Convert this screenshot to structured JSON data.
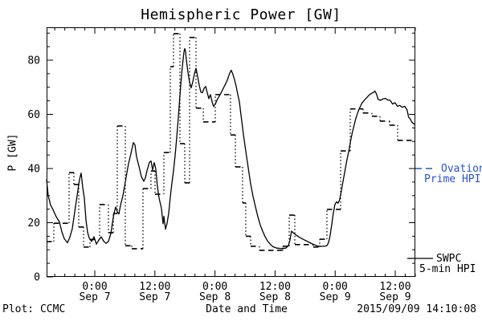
{
  "chart_data": {
    "type": "line",
    "title": "Hemispheric Power [GW]",
    "xlabel": "Date and Time",
    "ylabel": "P [GW]",
    "ylim": [
      0,
      92.15
    ],
    "yticks": [
      {
        "v": 0,
        "label": "0"
      },
      {
        "v": 20,
        "label": "20"
      },
      {
        "v": 40,
        "label": "40"
      },
      {
        "v": 60,
        "label": "60"
      },
      {
        "v": 80,
        "label": "80"
      }
    ],
    "y_minor_step": 5,
    "x_total_hours": 73.64,
    "x_minor_step_hours": 2,
    "xticks": [
      {
        "hour": 9.63,
        "time": "0:00",
        "date": "Sep 7"
      },
      {
        "hour": 21.63,
        "time": "12:00",
        "date": "Sep 7"
      },
      {
        "hour": 33.63,
        "time": "0:00",
        "date": "Sep 8"
      },
      {
        "hour": 45.63,
        "time": "12:00",
        "date": "Sep 8"
      },
      {
        "hour": 57.63,
        "time": "0:00",
        "date": "Sep 9"
      },
      {
        "hour": 69.63,
        "time": "12:00",
        "date": "Sep 9"
      }
    ],
    "legend_position": "right-outside",
    "grid": false,
    "series": [
      {
        "name": "Ovation Prime HPI",
        "color": "#2653cf",
        "style": "dashed-step",
        "units": "GW",
        "steps": [
          [
            0,
            13
          ],
          [
            1.44,
            19.8
          ],
          [
            4.49,
            38.5
          ],
          [
            5.45,
            34.1
          ],
          [
            6.42,
            18.4
          ],
          [
            7.38,
            11.0
          ],
          [
            8.66,
            13.8
          ],
          [
            10.59,
            26.7
          ],
          [
            12.35,
            16.3
          ],
          [
            13.32,
            23.4
          ],
          [
            14.12,
            55.7
          ],
          [
            15.72,
            11.5
          ],
          [
            17.01,
            10.4
          ],
          [
            19.25,
            32.6
          ],
          [
            20.85,
            39.1
          ],
          [
            21.66,
            30.5
          ],
          [
            23.42,
            45.9
          ],
          [
            24.7,
            77.6
          ],
          [
            25.35,
            89.8
          ],
          [
            26.63,
            49.2
          ],
          [
            27.59,
            34.7
          ],
          [
            28.56,
            88.4
          ],
          [
            29.84,
            62.3
          ],
          [
            31.28,
            57.2
          ],
          [
            33.69,
            67.3
          ],
          [
            36.73,
            52.4
          ],
          [
            37.7,
            40.6
          ],
          [
            39.14,
            27.3
          ],
          [
            39.78,
            15.0
          ],
          [
            40.75,
            11.3
          ],
          [
            42.51,
            9.8
          ],
          [
            47.17,
            11.3
          ],
          [
            48.45,
            22.8
          ],
          [
            49.57,
            11.9
          ],
          [
            53.26,
            11.0
          ],
          [
            54.55,
            13.9
          ],
          [
            55.99,
            24.9
          ],
          [
            58.72,
            46.5
          ],
          [
            60.64,
            62.0
          ],
          [
            63.21,
            60.5
          ],
          [
            64.97,
            59.3
          ],
          [
            66.58,
            57.5
          ],
          [
            68.5,
            56.0
          ],
          [
            70.11,
            50.4
          ]
        ]
      },
      {
        "name": "SWPC 5-min HPI",
        "color": "#000000",
        "style": "solid-line",
        "units": "GW",
        "points": [
          [
            0,
            36
          ],
          [
            0.32,
            30
          ],
          [
            0.8,
            26.5
          ],
          [
            1.28,
            24.8
          ],
          [
            1.93,
            22.2
          ],
          [
            2.57,
            20.3
          ],
          [
            3.05,
            16.6
          ],
          [
            3.53,
            14.1
          ],
          [
            4.17,
            12.6
          ],
          [
            4.65,
            14.7
          ],
          [
            5.13,
            17.8
          ],
          [
            5.61,
            24
          ],
          [
            6.1,
            30
          ],
          [
            6.58,
            36
          ],
          [
            6.9,
            38.3
          ],
          [
            7.22,
            33
          ],
          [
            7.54,
            29
          ],
          [
            7.86,
            21
          ],
          [
            8.18,
            16.5
          ],
          [
            8.5,
            14.4
          ],
          [
            8.98,
            13.1
          ],
          [
            9.47,
            14.8
          ],
          [
            9.95,
            12.1
          ],
          [
            10.43,
            13.6
          ],
          [
            10.91,
            14.8
          ],
          [
            11.39,
            13.2
          ],
          [
            11.87,
            12.4
          ],
          [
            12.35,
            13.1
          ],
          [
            12.84,
            16
          ],
          [
            13.16,
            20
          ],
          [
            13.48,
            23.6
          ],
          [
            13.8,
            25.8
          ],
          [
            14.12,
            24.1
          ],
          [
            14.44,
            23.2
          ],
          [
            14.76,
            26.4
          ],
          [
            15.24,
            30
          ],
          [
            15.56,
            33.4
          ],
          [
            15.88,
            36.8
          ],
          [
            16.36,
            41.8
          ],
          [
            16.84,
            45.5
          ],
          [
            17.33,
            49.6
          ],
          [
            17.65,
            48.7
          ],
          [
            17.97,
            44.3
          ],
          [
            18.45,
            40.8
          ],
          [
            18.93,
            37
          ],
          [
            19.41,
            35.3
          ],
          [
            19.73,
            36.6
          ],
          [
            20.05,
            39.2
          ],
          [
            20.53,
            42.3
          ],
          [
            20.85,
            42.8
          ],
          [
            21.17,
            39.5
          ],
          [
            21.49,
            42.2
          ],
          [
            21.81,
            40
          ],
          [
            22.13,
            33.5
          ],
          [
            22.45,
            29.3
          ],
          [
            22.94,
            25.2
          ],
          [
            23.26,
            19.6
          ],
          [
            23.42,
            22.4
          ],
          [
            23.74,
            17.6
          ],
          [
            24.06,
            19.8
          ],
          [
            24.38,
            23.5
          ],
          [
            24.7,
            29.5
          ],
          [
            25.02,
            34.6
          ],
          [
            25.34,
            39
          ],
          [
            25.66,
            44.5
          ],
          [
            25.99,
            51.5
          ],
          [
            26.31,
            59
          ],
          [
            26.63,
            67
          ],
          [
            26.95,
            74.5
          ],
          [
            27.27,
            80.5
          ],
          [
            27.43,
            83
          ],
          [
            27.59,
            84.3
          ],
          [
            27.75,
            83.2
          ],
          [
            27.91,
            80
          ],
          [
            28.23,
            75.5
          ],
          [
            28.55,
            71.8
          ],
          [
            28.88,
            69.8
          ],
          [
            29.2,
            72
          ],
          [
            29.52,
            75
          ],
          [
            29.84,
            77
          ],
          [
            30.16,
            74
          ],
          [
            30.48,
            70.8
          ],
          [
            30.8,
            68.2
          ],
          [
            31.12,
            68
          ],
          [
            31.44,
            69.6
          ],
          [
            31.76,
            70.3
          ],
          [
            32.08,
            68
          ],
          [
            32.4,
            65.8
          ],
          [
            32.72,
            67.3
          ],
          [
            33.04,
            64.8
          ],
          [
            33.36,
            62.9
          ],
          [
            33.68,
            63.8
          ],
          [
            34.17,
            65.8
          ],
          [
            34.65,
            67.3
          ],
          [
            35.13,
            69
          ],
          [
            35.61,
            70.8
          ],
          [
            36.09,
            72.6
          ],
          [
            36.57,
            75.2
          ],
          [
            36.89,
            76.3
          ],
          [
            37.21,
            74.8
          ],
          [
            37.53,
            72.8
          ],
          [
            37.85,
            70.5
          ],
          [
            38.17,
            67.5
          ],
          [
            38.49,
            64.8
          ],
          [
            38.81,
            60
          ],
          [
            39.29,
            52.8
          ],
          [
            39.77,
            46.5
          ],
          [
            40.25,
            40.5
          ],
          [
            40.73,
            34.5
          ],
          [
            41.21,
            29.8
          ],
          [
            41.7,
            26
          ],
          [
            42.18,
            22.3
          ],
          [
            42.66,
            19.2
          ],
          [
            43.14,
            16.9
          ],
          [
            43.62,
            14.9
          ],
          [
            44.1,
            13.3
          ],
          [
            44.58,
            12.2
          ],
          [
            45.22,
            11.1
          ],
          [
            46.02,
            10.6
          ],
          [
            46.82,
            10.5
          ],
          [
            47.79,
            10.6
          ],
          [
            48.27,
            11.5
          ],
          [
            48.59,
            13.5
          ],
          [
            48.91,
            16.9
          ],
          [
            49.23,
            16.3
          ],
          [
            49.71,
            15.6
          ],
          [
            50.35,
            14.8
          ],
          [
            50.99,
            14.1
          ],
          [
            51.63,
            13.5
          ],
          [
            52.28,
            12.9
          ],
          [
            52.92,
            12.3
          ],
          [
            53.56,
            11.8
          ],
          [
            54.04,
            11.4
          ],
          [
            54.68,
            11.3
          ],
          [
            55.48,
            11.3
          ],
          [
            55.96,
            11.5
          ],
          [
            56.28,
            12.5
          ],
          [
            56.6,
            15
          ],
          [
            56.92,
            19
          ],
          [
            57.24,
            23.3
          ],
          [
            57.56,
            26.6
          ],
          [
            57.88,
            27.7
          ],
          [
            58.2,
            27.2
          ],
          [
            58.52,
            28.5
          ],
          [
            58.84,
            31.5
          ],
          [
            59.16,
            34.8
          ],
          [
            59.48,
            38
          ],
          [
            59.81,
            41.5
          ],
          [
            60.13,
            44.5
          ],
          [
            60.45,
            47.5
          ],
          [
            60.77,
            50.8
          ],
          [
            61.09,
            53.6
          ],
          [
            61.41,
            56
          ],
          [
            61.73,
            58.3
          ],
          [
            62.05,
            60.2
          ],
          [
            62.37,
            61.8
          ],
          [
            62.69,
            63
          ],
          [
            63.01,
            64.2
          ],
          [
            63.49,
            65.3
          ],
          [
            63.97,
            66.2
          ],
          [
            64.45,
            67.2
          ],
          [
            64.93,
            67.8
          ],
          [
            65.25,
            68.1
          ],
          [
            65.57,
            68.6
          ],
          [
            65.89,
            67.5
          ],
          [
            66.21,
            65.5
          ],
          [
            66.7,
            65.2
          ],
          [
            67.18,
            65.7
          ],
          [
            67.66,
            65.9
          ],
          [
            68.14,
            65.3
          ],
          [
            68.62,
            65.2
          ],
          [
            69.1,
            63.8
          ],
          [
            69.58,
            64.3
          ],
          [
            70.06,
            63
          ],
          [
            70.54,
            63.3
          ],
          [
            71.02,
            62.6
          ],
          [
            71.5,
            63
          ],
          [
            71.98,
            61.7
          ],
          [
            72.3,
            59
          ],
          [
            72.62,
            58.3
          ],
          [
            72.94,
            57.2
          ],
          [
            73.26,
            56.6
          ],
          [
            73.58,
            56.3
          ]
        ]
      }
    ]
  },
  "legend": {
    "ovation": {
      "line1": "Ovation",
      "line2": "Prime HPI"
    },
    "swpc": {
      "line1": "SWPC",
      "line2": "5-min HPI"
    }
  },
  "footer": {
    "left": "Plot: CCMC",
    "center": "Date and Time",
    "right": "2015/09/09 14:10:08"
  }
}
